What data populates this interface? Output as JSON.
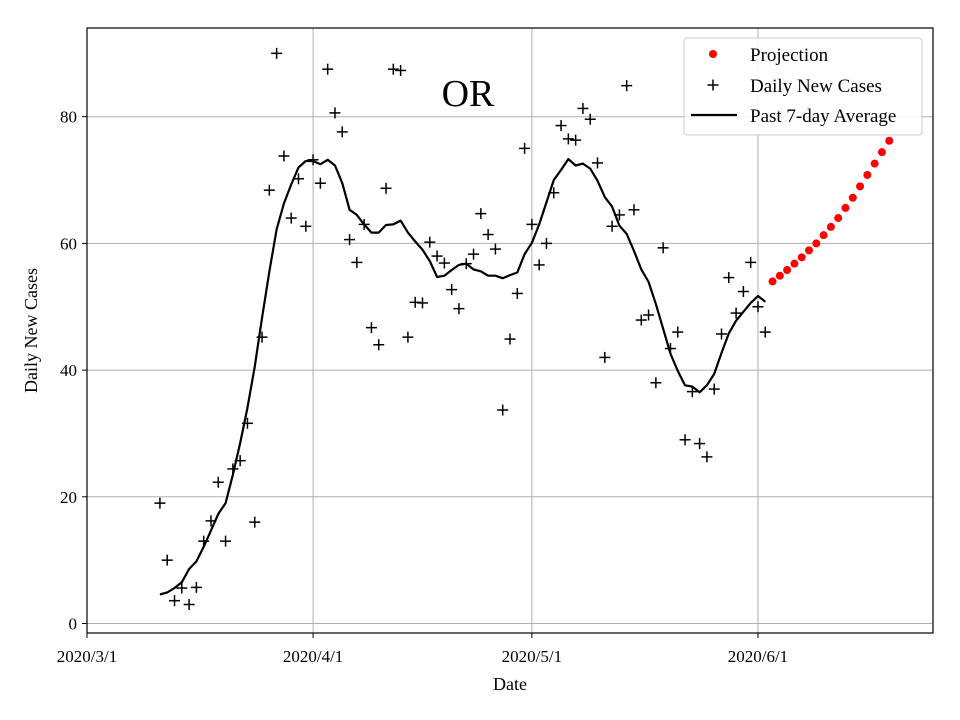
{
  "chart_data": {
    "type": "scatter",
    "state_label": "OR",
    "xlabel": "Date",
    "ylabel": "Daily New Cases",
    "x_tick_labels": [
      "2020/3/1",
      "2020/4/1",
      "2020/5/1",
      "2020/6/1"
    ],
    "x_tick_dates": [
      "2020-03-01",
      "2020-04-01",
      "2020-05-01",
      "2020-06-01"
    ],
    "y_ticks": [
      0,
      20,
      40,
      60,
      80
    ],
    "xlim": [
      "2020-03-01",
      "2020-06-25"
    ],
    "ylim": [
      -1.5,
      94
    ],
    "grid": true,
    "legend_position": "top-right",
    "colors": {
      "projection": "#ff0000",
      "daily": "#000000",
      "average": "#000000"
    },
    "series": [
      {
        "name": "Projection",
        "style": "dot",
        "points": [
          [
            "2020-06-03",
            54.0
          ],
          [
            "2020-06-04",
            54.9
          ],
          [
            "2020-06-05",
            55.8
          ],
          [
            "2020-06-06",
            56.8
          ],
          [
            "2020-06-07",
            57.8
          ],
          [
            "2020-06-08",
            58.9
          ],
          [
            "2020-06-09",
            60.0
          ],
          [
            "2020-06-10",
            61.3
          ],
          [
            "2020-06-11",
            62.6
          ],
          [
            "2020-06-12",
            64.0
          ],
          [
            "2020-06-13",
            65.6
          ],
          [
            "2020-06-14",
            67.2
          ],
          [
            "2020-06-15",
            69.0
          ],
          [
            "2020-06-16",
            70.8
          ],
          [
            "2020-06-17",
            72.6
          ],
          [
            "2020-06-18",
            74.4
          ],
          [
            "2020-06-19",
            76.2
          ]
        ]
      },
      {
        "name": "Daily New Cases",
        "style": "plus",
        "points": [
          [
            "2020-03-11",
            19
          ],
          [
            "2020-03-12",
            10
          ],
          [
            "2020-03-13",
            3.6
          ],
          [
            "2020-03-14",
            5.6
          ],
          [
            "2020-03-15",
            3
          ],
          [
            "2020-03-16",
            5.7
          ],
          [
            "2020-03-17",
            13
          ],
          [
            "2020-03-18",
            16.2
          ],
          [
            "2020-03-19",
            22.3
          ],
          [
            "2020-03-20",
            13
          ],
          [
            "2020-03-21",
            24.4
          ],
          [
            "2020-03-22",
            25.7
          ],
          [
            "2020-03-23",
            31.6
          ],
          [
            "2020-03-24",
            16
          ],
          [
            "2020-03-25",
            45.2
          ],
          [
            "2020-03-26",
            68.4
          ],
          [
            "2020-03-27",
            90
          ],
          [
            "2020-03-28",
            73.8
          ],
          [
            "2020-03-29",
            64
          ],
          [
            "2020-03-30",
            70.2
          ],
          [
            "2020-03-31",
            62.7
          ],
          [
            "2020-04-01",
            73.2
          ],
          [
            "2020-04-02",
            69.5
          ],
          [
            "2020-04-03",
            87.5
          ],
          [
            "2020-04-04",
            80.6
          ],
          [
            "2020-04-05",
            77.6
          ],
          [
            "2020-04-06",
            60.6
          ],
          [
            "2020-04-07",
            57
          ],
          [
            "2020-04-08",
            63
          ],
          [
            "2020-04-09",
            46.7
          ],
          [
            "2020-04-10",
            44
          ],
          [
            "2020-04-11",
            68.7
          ],
          [
            "2020-04-12",
            87.5
          ],
          [
            "2020-04-13",
            87.3
          ],
          [
            "2020-04-14",
            45.2
          ],
          [
            "2020-04-15",
            50.7
          ],
          [
            "2020-04-16",
            50.6
          ],
          [
            "2020-04-17",
            60.2
          ],
          [
            "2020-04-18",
            58
          ],
          [
            "2020-04-19",
            56.9
          ],
          [
            "2020-04-20",
            52.7
          ],
          [
            "2020-04-21",
            49.7
          ],
          [
            "2020-04-22",
            56.8
          ],
          [
            "2020-04-23",
            58.3
          ],
          [
            "2020-04-24",
            64.7
          ],
          [
            "2020-04-25",
            61.4
          ],
          [
            "2020-04-26",
            59.1
          ],
          [
            "2020-04-27",
            33.7
          ],
          [
            "2020-04-28",
            44.9
          ],
          [
            "2020-04-29",
            52.1
          ],
          [
            "2020-04-30",
            75
          ],
          [
            "2020-05-01",
            63
          ],
          [
            "2020-05-02",
            56.6
          ],
          [
            "2020-05-03",
            60
          ],
          [
            "2020-05-04",
            68
          ],
          [
            "2020-05-05",
            78.6
          ],
          [
            "2020-05-06",
            76.5
          ],
          [
            "2020-05-07",
            76.3
          ],
          [
            "2020-05-08",
            81.3
          ],
          [
            "2020-05-09",
            79.6
          ],
          [
            "2020-05-10",
            72.7
          ],
          [
            "2020-05-11",
            42
          ],
          [
            "2020-05-12",
            62.7
          ],
          [
            "2020-05-13",
            64.5
          ],
          [
            "2020-05-14",
            84.9
          ],
          [
            "2020-05-15",
            65.3
          ],
          [
            "2020-05-16",
            47.9
          ],
          [
            "2020-05-17",
            48.7
          ],
          [
            "2020-05-18",
            38
          ],
          [
            "2020-05-19",
            59.3
          ],
          [
            "2020-05-20",
            43.4
          ],
          [
            "2020-05-21",
            46
          ],
          [
            "2020-05-22",
            29
          ],
          [
            "2020-05-23",
            36.6
          ],
          [
            "2020-05-24",
            28.4
          ],
          [
            "2020-05-25",
            26.3
          ],
          [
            "2020-05-26",
            37
          ],
          [
            "2020-05-27",
            45.7
          ],
          [
            "2020-05-28",
            54.6
          ],
          [
            "2020-05-29",
            49
          ],
          [
            "2020-05-30",
            52.4
          ],
          [
            "2020-05-31",
            57
          ],
          [
            "2020-06-01",
            50
          ],
          [
            "2020-06-02",
            46
          ]
        ]
      },
      {
        "name": "Past 7-day Average",
        "style": "line",
        "points": [
          [
            "2020-03-11",
            4.6
          ],
          [
            "2020-03-12",
            4.9
          ],
          [
            "2020-03-13",
            5.6
          ],
          [
            "2020-03-14",
            6.5
          ],
          [
            "2020-03-15",
            8.6
          ],
          [
            "2020-03-16",
            9.8
          ],
          [
            "2020-03-17",
            12.1
          ],
          [
            "2020-03-18",
            14.7
          ],
          [
            "2020-03-19",
            17.3
          ],
          [
            "2020-03-20",
            19
          ],
          [
            "2020-03-21",
            23.5
          ],
          [
            "2020-03-22",
            28.5
          ],
          [
            "2020-03-23",
            34
          ],
          [
            "2020-03-24",
            40.5
          ],
          [
            "2020-03-25",
            48.2
          ],
          [
            "2020-03-26",
            55.5
          ],
          [
            "2020-03-27",
            62.2
          ],
          [
            "2020-03-28",
            66.3
          ],
          [
            "2020-03-29",
            69.3
          ],
          [
            "2020-03-30",
            72
          ],
          [
            "2020-03-31",
            73
          ],
          [
            "2020-04-01",
            73
          ],
          [
            "2020-04-02",
            72.5
          ],
          [
            "2020-04-03",
            73.2
          ],
          [
            "2020-04-04",
            72.3
          ],
          [
            "2020-04-05",
            69.5
          ],
          [
            "2020-04-06",
            65.3
          ],
          [
            "2020-04-07",
            64.5
          ],
          [
            "2020-04-08",
            63
          ],
          [
            "2020-04-09",
            61.7
          ],
          [
            "2020-04-10",
            61.7
          ],
          [
            "2020-04-11",
            62.9
          ],
          [
            "2020-04-12",
            63
          ],
          [
            "2020-04-13",
            63.6
          ],
          [
            "2020-04-14",
            61.7
          ],
          [
            "2020-04-15",
            60.3
          ],
          [
            "2020-04-16",
            59
          ],
          [
            "2020-04-17",
            57.2
          ],
          [
            "2020-04-18",
            54.7
          ],
          [
            "2020-04-19",
            54.9
          ],
          [
            "2020-04-20",
            55.8
          ],
          [
            "2020-04-21",
            56.6
          ],
          [
            "2020-04-22",
            56.8
          ],
          [
            "2020-04-23",
            55.9
          ],
          [
            "2020-04-24",
            55.6
          ],
          [
            "2020-04-25",
            54.9
          ],
          [
            "2020-04-26",
            54.9
          ],
          [
            "2020-04-27",
            54.5
          ],
          [
            "2020-04-28",
            55
          ],
          [
            "2020-04-29",
            55.4
          ],
          [
            "2020-04-30",
            58.3
          ],
          [
            "2020-05-01",
            60.1
          ],
          [
            "2020-05-02",
            63
          ],
          [
            "2020-05-03",
            66.5
          ],
          [
            "2020-05-04",
            70
          ],
          [
            "2020-05-05",
            71.6
          ],
          [
            "2020-05-06",
            73.3
          ],
          [
            "2020-05-07",
            72.3
          ],
          [
            "2020-05-08",
            72.6
          ],
          [
            "2020-05-09",
            71.8
          ],
          [
            "2020-05-10",
            69.9
          ],
          [
            "2020-05-11",
            67.3
          ],
          [
            "2020-05-12",
            65.8
          ],
          [
            "2020-05-13",
            62.8
          ],
          [
            "2020-05-14",
            61.5
          ],
          [
            "2020-05-15",
            58.8
          ],
          [
            "2020-05-16",
            55.9
          ],
          [
            "2020-05-17",
            53.9
          ],
          [
            "2020-05-18",
            50.4
          ],
          [
            "2020-05-19",
            46.5
          ],
          [
            "2020-05-20",
            42.6
          ],
          [
            "2020-05-21",
            39.9
          ],
          [
            "2020-05-22",
            37.6
          ],
          [
            "2020-05-23",
            37.4
          ],
          [
            "2020-05-24",
            36.5
          ],
          [
            "2020-05-25",
            37.6
          ],
          [
            "2020-05-26",
            39.4
          ],
          [
            "2020-05-27",
            42.7
          ],
          [
            "2020-05-28",
            45.8
          ],
          [
            "2020-05-29",
            47.8
          ],
          [
            "2020-05-30",
            49.2
          ],
          [
            "2020-05-31",
            50.6
          ],
          [
            "2020-06-01",
            51.7
          ],
          [
            "2020-06-02",
            50.8
          ]
        ]
      }
    ]
  }
}
